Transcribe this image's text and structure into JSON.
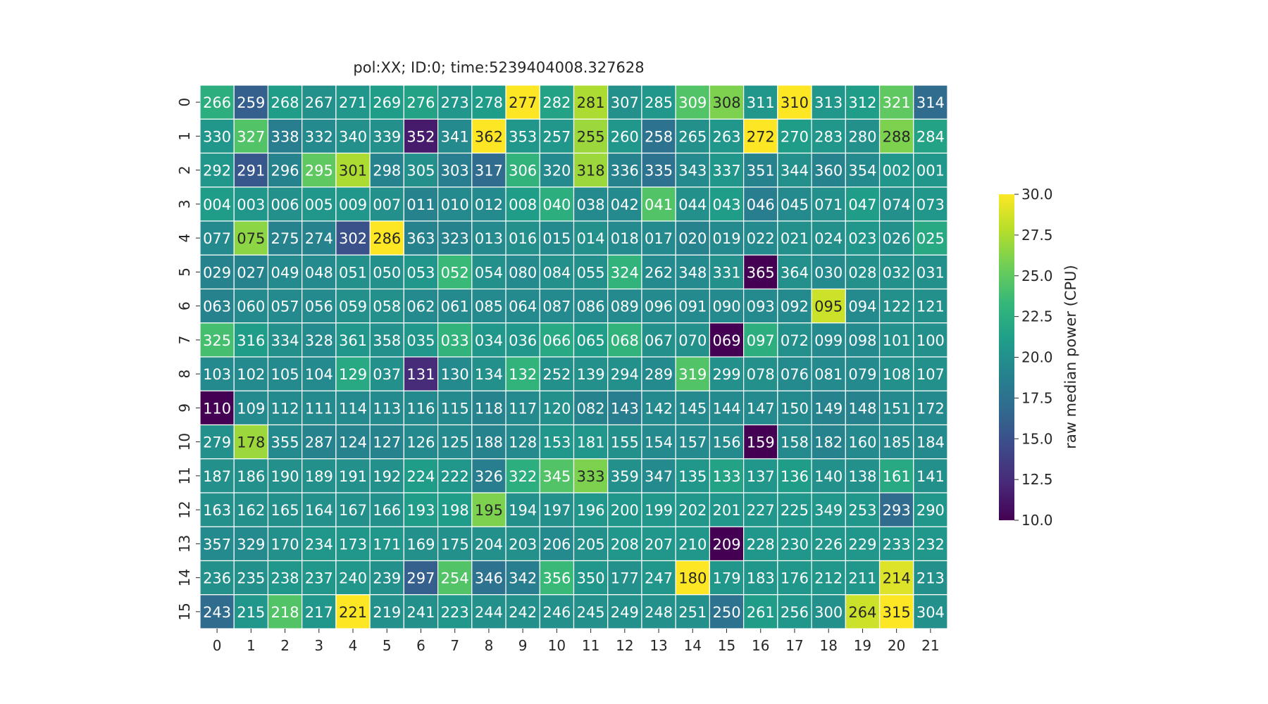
{
  "chart_data": {
    "type": "heatmap",
    "title": "pol:XX; ID:0; time:5239404008.327628",
    "x_tick_labels": [
      "0",
      "1",
      "2",
      "3",
      "4",
      "5",
      "6",
      "7",
      "8",
      "9",
      "10",
      "11",
      "12",
      "13",
      "14",
      "15",
      "16",
      "17",
      "18",
      "19",
      "20",
      "21"
    ],
    "y_tick_labels": [
      "0",
      "1",
      "2",
      "3",
      "4",
      "5",
      "6",
      "7",
      "8",
      "9",
      "10",
      "11",
      "12",
      "13",
      "14",
      "15"
    ],
    "annotations": [
      [
        "266",
        "259",
        "268",
        "267",
        "271",
        "269",
        "276",
        "273",
        "278",
        "277",
        "282",
        "281",
        "307",
        "285",
        "309",
        "308",
        "311",
        "310",
        "313",
        "312",
        "321",
        "314"
      ],
      [
        "330",
        "327",
        "338",
        "332",
        "340",
        "339",
        "352",
        "341",
        "362",
        "353",
        "257",
        "255",
        "260",
        "258",
        "265",
        "263",
        "272",
        "270",
        "283",
        "280",
        "288",
        "284"
      ],
      [
        "292",
        "291",
        "296",
        "295",
        "301",
        "298",
        "305",
        "303",
        "317",
        "306",
        "320",
        "318",
        "336",
        "335",
        "343",
        "337",
        "351",
        "344",
        "360",
        "354",
        "002",
        "001"
      ],
      [
        "004",
        "003",
        "006",
        "005",
        "009",
        "007",
        "011",
        "010",
        "012",
        "008",
        "040",
        "038",
        "042",
        "041",
        "044",
        "043",
        "046",
        "045",
        "071",
        "047",
        "074",
        "073"
      ],
      [
        "077",
        "075",
        "275",
        "274",
        "302",
        "286",
        "363",
        "323",
        "013",
        "016",
        "015",
        "014",
        "018",
        "017",
        "020",
        "019",
        "022",
        "021",
        "024",
        "023",
        "026",
        "025"
      ],
      [
        "029",
        "027",
        "049",
        "048",
        "051",
        "050",
        "053",
        "052",
        "054",
        "080",
        "084",
        "055",
        "324",
        "262",
        "348",
        "331",
        "365",
        "364",
        "030",
        "028",
        "032",
        "031"
      ],
      [
        "063",
        "060",
        "057",
        "056",
        "059",
        "058",
        "062",
        "061",
        "085",
        "064",
        "087",
        "086",
        "089",
        "096",
        "091",
        "090",
        "093",
        "092",
        "095",
        "094",
        "122",
        "121"
      ],
      [
        "325",
        "316",
        "334",
        "328",
        "361",
        "358",
        "035",
        "033",
        "034",
        "036",
        "066",
        "065",
        "068",
        "067",
        "070",
        "069",
        "097",
        "072",
        "099",
        "098",
        "101",
        "100"
      ],
      [
        "103",
        "102",
        "105",
        "104",
        "129",
        "037",
        "131",
        "130",
        "134",
        "132",
        "252",
        "139",
        "294",
        "289",
        "319",
        "299",
        "078",
        "076",
        "081",
        "079",
        "108",
        "107"
      ],
      [
        "110",
        "109",
        "112",
        "111",
        "114",
        "113",
        "116",
        "115",
        "118",
        "117",
        "120",
        "082",
        "143",
        "142",
        "145",
        "144",
        "147",
        "150",
        "149",
        "148",
        "151",
        "172"
      ],
      [
        "279",
        "178",
        "355",
        "287",
        "124",
        "127",
        "126",
        "125",
        "188",
        "128",
        "153",
        "181",
        "155",
        "154",
        "157",
        "156",
        "159",
        "158",
        "182",
        "160",
        "185",
        "184"
      ],
      [
        "187",
        "186",
        "190",
        "189",
        "191",
        "192",
        "224",
        "222",
        "326",
        "322",
        "345",
        "333",
        "359",
        "347",
        "135",
        "133",
        "137",
        "136",
        "140",
        "138",
        "161",
        "141"
      ],
      [
        "163",
        "162",
        "165",
        "164",
        "167",
        "166",
        "193",
        "198",
        "195",
        "194",
        "197",
        "196",
        "200",
        "199",
        "202",
        "201",
        "227",
        "225",
        "349",
        "253",
        "293",
        "290"
      ],
      [
        "357",
        "329",
        "170",
        "234",
        "173",
        "171",
        "169",
        "175",
        "204",
        "203",
        "206",
        "205",
        "208",
        "207",
        "210",
        "209",
        "228",
        "230",
        "226",
        "229",
        "233",
        "232"
      ],
      [
        "236",
        "235",
        "238",
        "237",
        "240",
        "239",
        "297",
        "254",
        "346",
        "342",
        "356",
        "350",
        "177",
        "247",
        "180",
        "179",
        "183",
        "176",
        "212",
        "211",
        "214",
        "213"
      ],
      [
        "243",
        "215",
        "218",
        "217",
        "221",
        "219",
        "241",
        "223",
        "244",
        "242",
        "246",
        "245",
        "249",
        "248",
        "251",
        "250",
        "261",
        "256",
        "300",
        "264",
        "315",
        "304"
      ]
    ],
    "values": [
      [
        22.5,
        16.0,
        21.0,
        20.0,
        20.5,
        21.0,
        21.5,
        20.5,
        21.0,
        30.0,
        21.5,
        27.5,
        20.0,
        20.5,
        24.5,
        26.0,
        20.5,
        30.0,
        20.5,
        21.0,
        25.0,
        17.0
      ],
      [
        20.5,
        24.5,
        18.5,
        19.5,
        20.0,
        20.0,
        11.5,
        19.5,
        30.0,
        20.5,
        20.5,
        27.0,
        20.5,
        17.5,
        20.0,
        20.5,
        30.0,
        21.0,
        20.5,
        20.0,
        26.0,
        21.5
      ],
      [
        20.5,
        15.5,
        19.0,
        25.0,
        27.5,
        19.0,
        20.0,
        18.5,
        17.0,
        23.0,
        19.5,
        27.0,
        19.0,
        17.5,
        19.5,
        20.5,
        19.0,
        20.0,
        19.0,
        19.5,
        20.5,
        20.5
      ],
      [
        21.0,
        20.5,
        20.0,
        20.5,
        20.5,
        20.0,
        19.0,
        19.5,
        19.5,
        21.0,
        22.5,
        19.5,
        19.5,
        24.5,
        20.0,
        21.0,
        18.5,
        19.5,
        20.0,
        21.0,
        20.0,
        20.5
      ],
      [
        19.5,
        26.5,
        19.0,
        19.0,
        15.0,
        30.0,
        19.0,
        19.0,
        19.5,
        20.0,
        19.5,
        20.0,
        19.5,
        19.5,
        19.0,
        19.5,
        19.5,
        20.0,
        20.0,
        20.5,
        20.0,
        22.0
      ],
      [
        19.0,
        19.0,
        19.5,
        19.5,
        20.0,
        20.0,
        20.5,
        23.5,
        20.0,
        19.5,
        20.0,
        20.0,
        23.0,
        19.5,
        19.5,
        20.0,
        10.0,
        20.0,
        19.5,
        20.0,
        20.0,
        20.0
      ],
      [
        19.0,
        19.5,
        19.5,
        19.5,
        20.0,
        20.0,
        19.5,
        19.5,
        19.5,
        19.5,
        19.5,
        19.5,
        19.5,
        19.5,
        19.5,
        19.5,
        19.5,
        19.5,
        28.5,
        19.5,
        20.0,
        20.0
      ],
      [
        24.0,
        21.0,
        20.0,
        19.5,
        20.5,
        20.0,
        20.5,
        23.0,
        20.5,
        20.5,
        22.0,
        21.0,
        23.0,
        20.0,
        20.0,
        10.0,
        22.5,
        20.0,
        19.5,
        19.5,
        20.0,
        20.0
      ],
      [
        19.5,
        19.5,
        19.5,
        19.5,
        22.0,
        20.0,
        12.5,
        19.5,
        20.0,
        23.0,
        20.0,
        20.0,
        20.0,
        19.5,
        24.5,
        20.0,
        20.0,
        19.5,
        19.5,
        19.5,
        20.0,
        20.0
      ],
      [
        10.0,
        19.5,
        19.5,
        19.5,
        19.5,
        19.5,
        19.5,
        19.5,
        19.0,
        19.5,
        20.0,
        19.0,
        18.5,
        19.5,
        19.5,
        19.5,
        19.5,
        19.5,
        19.0,
        19.0,
        19.5,
        19.5
      ],
      [
        20.0,
        27.0,
        19.5,
        19.0,
        19.0,
        19.0,
        19.5,
        19.5,
        19.0,
        19.5,
        20.5,
        20.5,
        20.0,
        19.5,
        19.5,
        19.5,
        10.0,
        19.5,
        19.0,
        19.5,
        19.5,
        19.5
      ],
      [
        20.0,
        20.0,
        20.0,
        20.0,
        20.0,
        20.0,
        21.0,
        20.5,
        18.5,
        22.5,
        24.5,
        26.0,
        20.0,
        19.5,
        20.5,
        21.5,
        20.5,
        21.0,
        20.0,
        20.0,
        22.0,
        20.0
      ],
      [
        20.0,
        20.0,
        20.0,
        20.0,
        20.0,
        20.0,
        21.0,
        21.0,
        26.0,
        20.0,
        20.0,
        20.5,
        20.5,
        20.5,
        20.5,
        20.5,
        20.5,
        20.5,
        20.5,
        20.5,
        17.0,
        20.5
      ],
      [
        19.5,
        19.5,
        20.0,
        20.5,
        20.5,
        20.5,
        20.0,
        20.0,
        20.0,
        20.0,
        19.5,
        20.0,
        20.5,
        20.5,
        20.5,
        10.0,
        20.5,
        20.5,
        20.5,
        20.5,
        20.5,
        20.5
      ],
      [
        20.0,
        20.0,
        20.5,
        20.5,
        20.5,
        20.0,
        16.0,
        24.5,
        17.5,
        18.5,
        23.5,
        20.5,
        20.0,
        20.5,
        30.0,
        20.5,
        20.5,
        20.5,
        20.5,
        20.5,
        29.0,
        20.0
      ],
      [
        17.0,
        20.5,
        24.5,
        20.5,
        30.0,
        20.0,
        20.0,
        20.5,
        20.0,
        20.0,
        20.0,
        20.0,
        20.0,
        20.0,
        20.0,
        17.5,
        21.0,
        20.5,
        20.0,
        28.5,
        30.0,
        20.0
      ]
    ],
    "vmin": 10.0,
    "vmax": 30.0,
    "colormap": "viridis",
    "colorbar": {
      "label": "raw median power (CPU)",
      "ticks": [
        "10.0",
        "12.5",
        "15.0",
        "17.5",
        "20.0",
        "22.5",
        "25.0",
        "27.5",
        "30.0"
      ]
    },
    "grid": "white cell borders",
    "legend": "none"
  }
}
